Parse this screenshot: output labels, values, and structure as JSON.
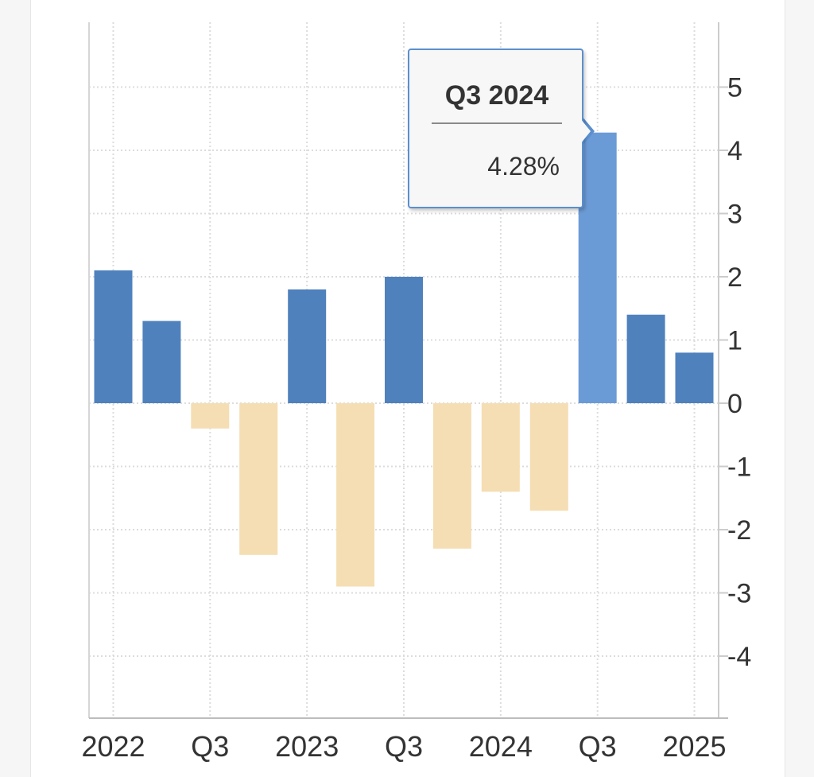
{
  "chart_data": {
    "type": "bar",
    "categories": [
      "Q1 2022",
      "Q2 2022",
      "Q3 2022",
      "Q4 2022",
      "Q1 2023",
      "Q2 2023",
      "Q3 2023",
      "Q4 2023",
      "Q1 2024",
      "Q2 2024",
      "Q3 2024",
      "Q4 2024",
      "Q1 2025"
    ],
    "values": [
      2.1,
      1.3,
      -0.4,
      -2.4,
      1.8,
      -2.9,
      2.0,
      -2.3,
      -1.4,
      -1.7,
      4.28,
      1.4,
      0.8
    ],
    "highlighted_index": 10,
    "ylim": [
      -4.9,
      6.0
    ],
    "yticks": [
      5,
      4,
      3,
      2,
      1,
      0,
      -1,
      -2,
      -3,
      -4
    ],
    "xtick_labels": [
      "2022",
      "Q3",
      "2023",
      "Q3",
      "2024",
      "Q3",
      "2025"
    ],
    "y_axis_position": "right",
    "grid": true,
    "colors": {
      "positive": "#4f81bd",
      "positive_highlight": "#6b9bd6",
      "negative": "#f5deb3"
    },
    "tooltip": {
      "title": "Q3 2024",
      "value": "4.28%"
    }
  }
}
